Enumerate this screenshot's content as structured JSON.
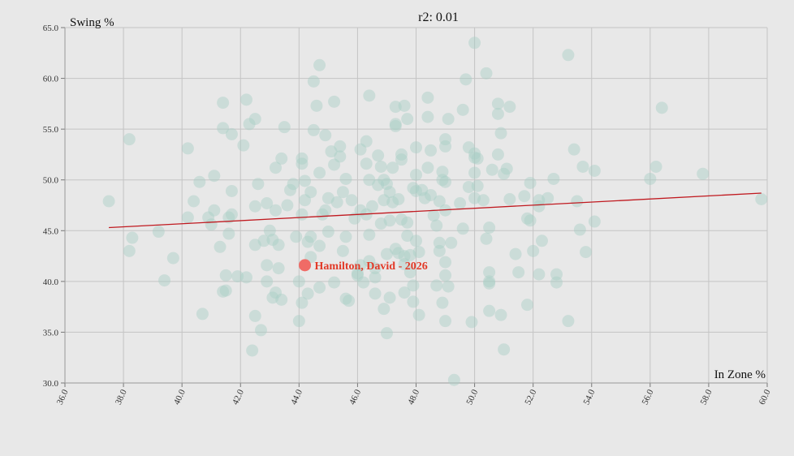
{
  "chart_data": {
    "type": "scatter",
    "title": "r2: 0.01",
    "xlabel": "In Zone %",
    "ylabel": "Swing %",
    "xlim": [
      36.0,
      60.0
    ],
    "ylim": [
      30.0,
      65.0
    ],
    "x_ticks": [
      "36.0",
      "38.0",
      "40.0",
      "42.0",
      "44.0",
      "46.0",
      "48.0",
      "50.0",
      "52.0",
      "54.0",
      "56.0",
      "58.0",
      "60.0"
    ],
    "y_ticks": [
      "30.0",
      "35.0",
      "40.0",
      "45.0",
      "50.0",
      "55.0",
      "60.0",
      "65.0"
    ],
    "grid": true,
    "colors": {
      "points": "#a9cfc6",
      "highlight": "#f06b66",
      "highlight_text": "#e23a28",
      "trend": "#c0191f",
      "grid": "#c4c4c4"
    },
    "trendline": {
      "x": [
        37.5,
        59.8
      ],
      "y": [
        45.3,
        48.7
      ]
    },
    "highlight": {
      "label": "Hamilton, David - 2026",
      "x": 44.2,
      "y": 41.6
    },
    "points": [
      [
        37.5,
        47.9
      ],
      [
        38.2,
        54.0
      ],
      [
        38.2,
        43.0
      ],
      [
        38.3,
        44.3
      ],
      [
        39.2,
        44.9
      ],
      [
        39.4,
        40.1
      ],
      [
        39.7,
        42.3
      ],
      [
        40.2,
        53.1
      ],
      [
        40.2,
        46.3
      ],
      [
        40.4,
        47.9
      ],
      [
        40.6,
        49.8
      ],
      [
        40.7,
        36.8
      ],
      [
        40.9,
        46.3
      ],
      [
        41.0,
        45.6
      ],
      [
        41.1,
        50.4
      ],
      [
        41.1,
        47.0
      ],
      [
        41.3,
        43.4
      ],
      [
        41.4,
        57.6
      ],
      [
        41.4,
        55.1
      ],
      [
        41.4,
        39.0
      ],
      [
        41.5,
        40.6
      ],
      [
        41.5,
        39.1
      ],
      [
        41.6,
        46.3
      ],
      [
        41.6,
        44.7
      ],
      [
        41.7,
        54.5
      ],
      [
        41.7,
        48.9
      ],
      [
        41.7,
        46.6
      ],
      [
        41.9,
        40.5
      ],
      [
        42.1,
        53.4
      ],
      [
        42.2,
        40.4
      ],
      [
        42.2,
        57.9
      ],
      [
        42.3,
        55.5
      ],
      [
        42.4,
        33.2
      ],
      [
        42.5,
        47.4
      ],
      [
        42.5,
        56.0
      ],
      [
        42.5,
        43.6
      ],
      [
        42.5,
        36.6
      ],
      [
        42.6,
        49.6
      ],
      [
        42.7,
        35.2
      ],
      [
        42.8,
        44.0
      ],
      [
        42.9,
        41.6
      ],
      [
        42.9,
        40.0
      ],
      [
        42.9,
        47.7
      ],
      [
        43.0,
        45.0
      ],
      [
        43.1,
        44.1
      ],
      [
        43.1,
        38.4
      ],
      [
        43.2,
        38.9
      ],
      [
        43.2,
        51.2
      ],
      [
        43.2,
        47.0
      ],
      [
        43.3,
        41.3
      ],
      [
        43.3,
        43.6
      ],
      [
        43.4,
        38.2
      ],
      [
        43.4,
        52.1
      ],
      [
        43.5,
        55.2
      ],
      [
        43.6,
        47.5
      ],
      [
        43.7,
        49.0
      ],
      [
        43.8,
        49.6
      ],
      [
        43.9,
        44.4
      ],
      [
        44.0,
        40.0
      ],
      [
        44.0,
        36.1
      ],
      [
        44.1,
        52.1
      ],
      [
        44.1,
        51.6
      ],
      [
        44.1,
        46.6
      ],
      [
        44.1,
        37.9
      ],
      [
        44.2,
        49.9
      ],
      [
        44.2,
        48.0
      ],
      [
        44.3,
        43.9
      ],
      [
        44.3,
        38.8
      ],
      [
        44.4,
        44.4
      ],
      [
        44.4,
        42.4
      ],
      [
        44.4,
        48.8
      ],
      [
        44.5,
        59.7
      ],
      [
        44.5,
        54.9
      ],
      [
        44.6,
        57.3
      ],
      [
        44.7,
        43.5
      ],
      [
        44.7,
        39.4
      ],
      [
        44.7,
        61.3
      ],
      [
        44.7,
        50.7
      ],
      [
        44.8,
        46.6
      ],
      [
        44.9,
        47.0
      ],
      [
        44.9,
        54.4
      ],
      [
        45.0,
        44.9
      ],
      [
        45.0,
        48.2
      ],
      [
        45.1,
        52.8
      ],
      [
        45.2,
        57.7
      ],
      [
        45.2,
        39.9
      ],
      [
        45.2,
        51.5
      ],
      [
        45.3,
        47.8
      ],
      [
        45.4,
        53.3
      ],
      [
        45.4,
        52.3
      ],
      [
        45.5,
        48.8
      ],
      [
        45.5,
        43.0
      ],
      [
        45.6,
        44.4
      ],
      [
        45.6,
        38.3
      ],
      [
        45.6,
        50.1
      ],
      [
        45.7,
        38.1
      ],
      [
        45.8,
        48.0
      ],
      [
        45.9,
        46.2
      ],
      [
        46.0,
        40.8
      ],
      [
        46.0,
        40.6
      ],
      [
        46.1,
        41.6
      ],
      [
        46.1,
        53.0
      ],
      [
        46.1,
        47.0
      ],
      [
        46.2,
        39.9
      ],
      [
        46.3,
        53.8
      ],
      [
        46.3,
        51.6
      ],
      [
        46.3,
        46.6
      ],
      [
        46.4,
        44.6
      ],
      [
        46.4,
        42.0
      ],
      [
        46.4,
        58.3
      ],
      [
        46.4,
        50.0
      ],
      [
        46.5,
        47.4
      ],
      [
        46.6,
        38.8
      ],
      [
        46.6,
        41.3
      ],
      [
        46.6,
        40.4
      ],
      [
        46.7,
        52.4
      ],
      [
        46.7,
        49.5
      ],
      [
        46.8,
        45.7
      ],
      [
        46.8,
        51.3
      ],
      [
        46.9,
        50.0
      ],
      [
        46.9,
        48.0
      ],
      [
        46.9,
        37.3
      ],
      [
        47.0,
        34.9
      ],
      [
        47.0,
        42.7
      ],
      [
        47.0,
        49.6
      ],
      [
        47.1,
        46.0
      ],
      [
        47.1,
        38.4
      ],
      [
        47.1,
        48.8
      ],
      [
        47.2,
        51.2
      ],
      [
        47.2,
        47.8
      ],
      [
        47.3,
        57.2
      ],
      [
        47.3,
        55.5
      ],
      [
        47.3,
        55.3
      ],
      [
        47.3,
        43.2
      ],
      [
        47.4,
        42.8
      ],
      [
        47.4,
        48.1
      ],
      [
        47.5,
        52.5
      ],
      [
        47.5,
        52.0
      ],
      [
        47.5,
        46.1
      ],
      [
        47.6,
        41.7
      ],
      [
        47.6,
        38.9
      ],
      [
        47.6,
        57.3
      ],
      [
        47.6,
        42.5
      ],
      [
        47.7,
        56.0
      ],
      [
        47.7,
        45.8
      ],
      [
        47.7,
        44.5
      ],
      [
        47.8,
        42.6
      ],
      [
        47.8,
        40.9
      ],
      [
        47.9,
        38.0
      ],
      [
        47.9,
        39.6
      ],
      [
        47.9,
        49.2
      ],
      [
        48.0,
        53.2
      ],
      [
        48.0,
        50.5
      ],
      [
        48.0,
        48.9
      ],
      [
        48.0,
        44.0
      ],
      [
        48.1,
        42.9
      ],
      [
        48.1,
        36.7
      ],
      [
        48.2,
        49.0
      ],
      [
        48.3,
        48.2
      ],
      [
        48.4,
        58.1
      ],
      [
        48.4,
        56.2
      ],
      [
        48.4,
        51.2
      ],
      [
        48.5,
        48.5
      ],
      [
        48.5,
        52.9
      ],
      [
        48.6,
        46.5
      ],
      [
        48.7,
        45.5
      ],
      [
        48.7,
        39.6
      ],
      [
        48.8,
        47.9
      ],
      [
        48.8,
        43.8
      ],
      [
        48.8,
        43.0
      ],
      [
        48.9,
        50.8
      ],
      [
        48.9,
        50.0
      ],
      [
        48.9,
        37.9
      ],
      [
        49.0,
        54.0
      ],
      [
        49.0,
        53.3
      ],
      [
        49.0,
        49.8
      ],
      [
        49.0,
        47.0
      ],
      [
        49.0,
        41.9
      ],
      [
        49.0,
        40.6
      ],
      [
        49.0,
        36.1
      ],
      [
        49.1,
        39.5
      ],
      [
        49.1,
        56.0
      ],
      [
        49.2,
        43.8
      ],
      [
        49.3,
        30.3
      ],
      [
        49.5,
        47.7
      ],
      [
        49.6,
        56.9
      ],
      [
        49.6,
        45.2
      ],
      [
        49.7,
        59.9
      ],
      [
        49.8,
        53.2
      ],
      [
        49.8,
        49.3
      ],
      [
        49.9,
        36.0
      ],
      [
        50.0,
        52.6
      ],
      [
        50.0,
        48.2
      ],
      [
        50.0,
        63.5
      ],
      [
        50.0,
        52.2
      ],
      [
        50.0,
        50.7
      ],
      [
        50.1,
        52.1
      ],
      [
        50.1,
        49.4
      ],
      [
        50.3,
        48.0
      ],
      [
        50.4,
        60.5
      ],
      [
        50.4,
        44.2
      ],
      [
        50.5,
        45.3
      ],
      [
        50.5,
        40.9
      ],
      [
        50.5,
        40.0
      ],
      [
        50.5,
        39.8
      ],
      [
        50.5,
        37.1
      ],
      [
        50.6,
        51.0
      ],
      [
        50.8,
        57.5
      ],
      [
        50.8,
        56.5
      ],
      [
        50.8,
        52.5
      ],
      [
        50.9,
        54.6
      ],
      [
        50.9,
        36.7
      ],
      [
        51.0,
        50.6
      ],
      [
        51.0,
        33.3
      ],
      [
        51.1,
        51.1
      ],
      [
        51.2,
        57.2
      ],
      [
        51.2,
        48.1
      ],
      [
        51.4,
        42.7
      ],
      [
        51.5,
        40.9
      ],
      [
        51.7,
        48.4
      ],
      [
        51.8,
        37.7
      ],
      [
        51.8,
        46.2
      ],
      [
        51.9,
        46.0
      ],
      [
        51.9,
        49.7
      ],
      [
        52.0,
        43.0
      ],
      [
        52.2,
        48.0
      ],
      [
        52.2,
        47.4
      ],
      [
        52.2,
        40.7
      ],
      [
        52.3,
        44.0
      ],
      [
        52.5,
        48.2
      ],
      [
        52.7,
        50.1
      ],
      [
        52.8,
        40.7
      ],
      [
        52.8,
        39.9
      ],
      [
        53.2,
        62.3
      ],
      [
        53.2,
        36.1
      ],
      [
        53.4,
        53.0
      ],
      [
        53.5,
        47.9
      ],
      [
        53.6,
        45.1
      ],
      [
        53.7,
        51.3
      ],
      [
        53.8,
        42.9
      ],
      [
        54.1,
        45.9
      ],
      [
        54.1,
        50.9
      ],
      [
        56.0,
        50.1
      ],
      [
        56.2,
        51.3
      ],
      [
        56.4,
        57.1
      ],
      [
        57.8,
        50.6
      ],
      [
        59.8,
        48.1
      ]
    ]
  }
}
